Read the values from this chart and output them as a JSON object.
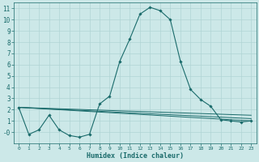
{
  "xlabel": "Humidex (Indice chaleur)",
  "bg_color": "#cce8e8",
  "grid_color": "#b0d4d4",
  "line_color": "#1a6b6b",
  "xlim": [
    -0.5,
    23.5
  ],
  "ylim": [
    -1.0,
    11.5
  ],
  "xticks": [
    0,
    1,
    2,
    3,
    4,
    5,
    6,
    7,
    8,
    9,
    10,
    11,
    12,
    13,
    14,
    15,
    16,
    17,
    18,
    19,
    20,
    21,
    22,
    23
  ],
  "yticks": [
    0,
    1,
    2,
    3,
    4,
    5,
    6,
    7,
    8,
    9,
    10,
    11
  ],
  "ytick_labels": [
    "-0",
    "1",
    "2",
    "3",
    "4",
    "5",
    "6",
    "7",
    "8",
    "9",
    "10",
    "11"
  ],
  "series": [
    {
      "x": [
        0,
        1,
        2,
        3,
        4,
        5,
        6,
        7,
        8,
        9,
        10,
        11,
        12,
        13,
        14,
        15,
        16,
        17,
        18,
        19,
        20,
        21,
        22,
        23
      ],
      "y": [
        2.2,
        -0.2,
        0.2,
        1.5,
        0.2,
        -0.3,
        -0.45,
        -0.2,
        2.5,
        3.2,
        6.3,
        8.3,
        10.5,
        11.1,
        10.8,
        10.0,
        6.3,
        3.8,
        2.9,
        2.3,
        1.1,
        1.0,
        0.9,
        1.0
      ],
      "marker": true
    },
    {
      "x": [
        0,
        23
      ],
      "y": [
        2.2,
        1.0
      ],
      "marker": false
    },
    {
      "x": [
        0,
        23
      ],
      "y": [
        2.2,
        1.2
      ],
      "marker": false
    },
    {
      "x": [
        0,
        23
      ],
      "y": [
        2.2,
        1.5
      ],
      "marker": false
    },
    {
      "x": [
        0,
        1,
        3,
        4,
        5,
        6,
        7,
        8,
        9,
        12,
        13,
        14,
        17,
        18,
        19,
        20,
        21,
        22,
        23
      ],
      "y": [
        2.2,
        -0.2,
        1.5,
        0.2,
        -0.3,
        -0.45,
        -0.2,
        2.5,
        3.2,
        10.5,
        11.1,
        10.8,
        3.8,
        2.9,
        2.3,
        1.1,
        1.0,
        0.9,
        1.0
      ],
      "marker": true
    }
  ]
}
